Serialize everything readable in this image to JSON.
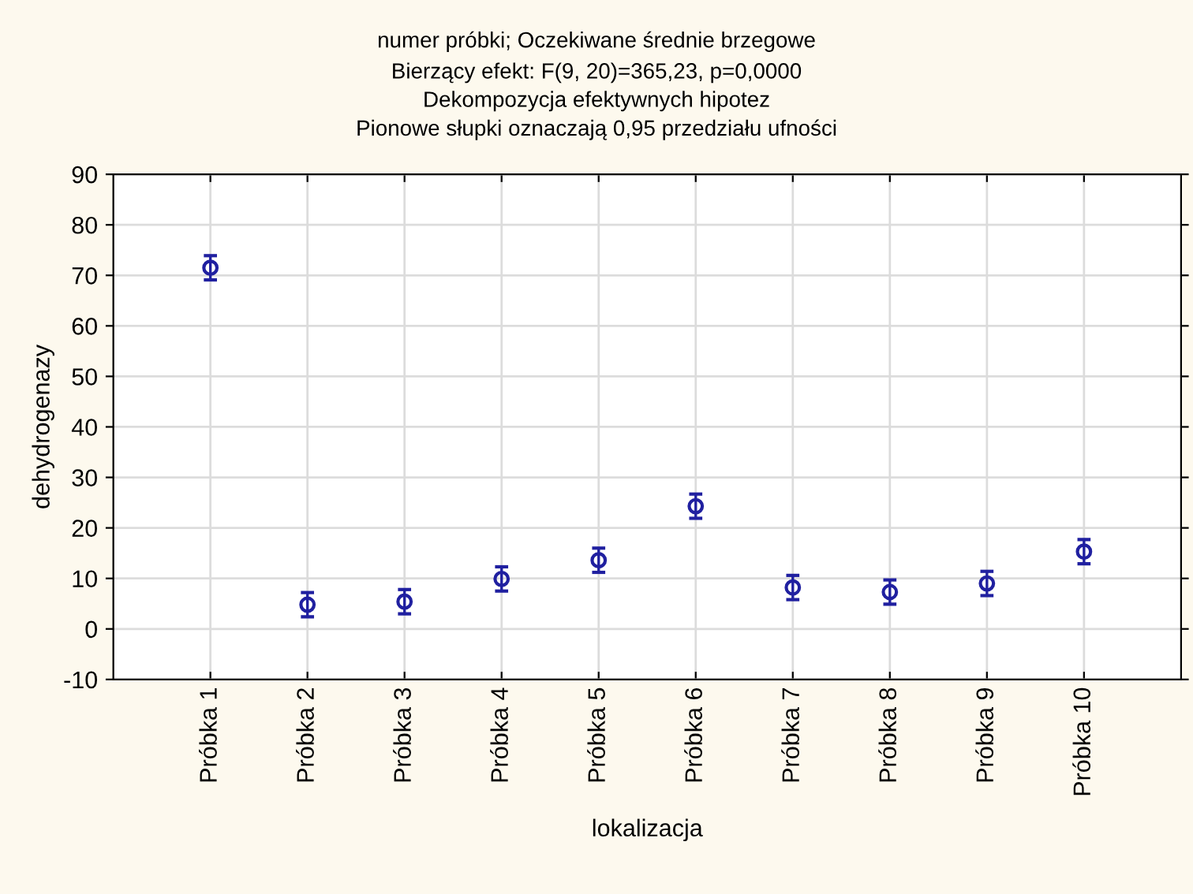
{
  "chart_data": {
    "type": "scatter",
    "title": "numer próbki; Oczekiwane średnie brzegowe",
    "subtitle": "Bierzący efekt: F(9, 20)=365,23, p=0,0000\nDekompozycja efektywnych hipotez\nPionowe słupki oznaczają 0,95 przedziału ufności",
    "xlabel": "lokalizacja",
    "ylabel": "dehydrogenazy",
    "categories": [
      "Próbka 1",
      "Próbka 2",
      "Próbka 3",
      "Próbka 4",
      "Próbka 5",
      "Próbka 6",
      "Próbka 7",
      "Próbka 8",
      "Próbka 9",
      "Próbka 10"
    ],
    "series": [
      {
        "color": "#2020a0",
        "values": [
          71.5,
          4.8,
          5.4,
          9.9,
          13.6,
          24.3,
          8.2,
          7.3,
          9.0,
          15.3
        ],
        "errors": [
          2.4,
          2.4,
          2.4,
          2.4,
          2.4,
          2.4,
          2.4,
          2.4,
          2.4,
          2.4
        ]
      }
    ],
    "marker": "circle",
    "ylim": [
      -10,
      90
    ],
    "yticks": [
      -10,
      0,
      10,
      20,
      30,
      40,
      50,
      60,
      70,
      80,
      90
    ],
    "grid": true,
    "legend": false
  }
}
